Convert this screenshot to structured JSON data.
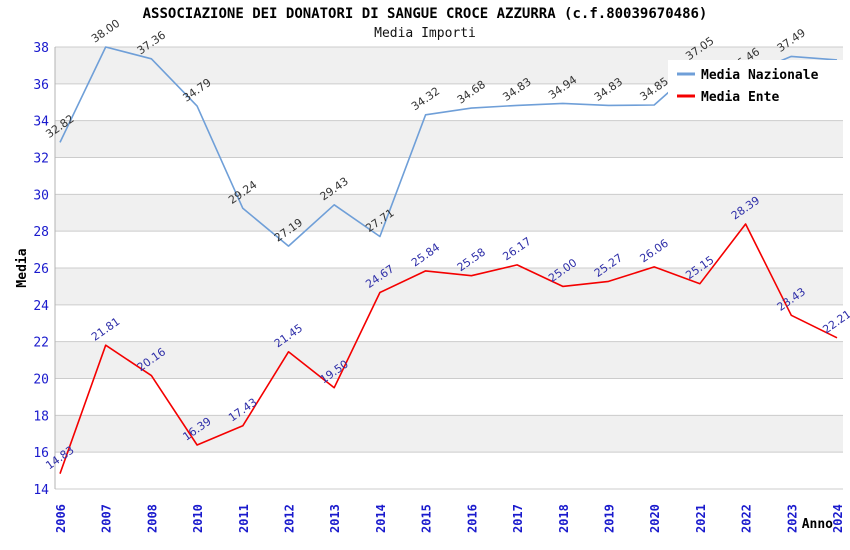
{
  "title": "ASSOCIAZIONE DEI DONATORI DI SANGUE CROCE AZZURRA (c.f.80039670486)",
  "subtitle": "Media Importi",
  "chart_data": {
    "type": "line",
    "categories": [
      "2006",
      "2007",
      "2008",
      "2010",
      "2011",
      "2012",
      "2013",
      "2014",
      "2015",
      "2016",
      "2017",
      "2018",
      "2019",
      "2020",
      "2021",
      "2022",
      "2023",
      "2024"
    ],
    "series": [
      {
        "name": "Media Nazionale",
        "color": "#6f9fd8",
        "label_color": "#333333",
        "values": [
          32.82,
          38.0,
          37.36,
          34.79,
          29.24,
          27.19,
          29.43,
          27.71,
          34.32,
          34.68,
          34.83,
          34.94,
          34.83,
          34.85,
          37.05,
          36.46,
          37.49,
          37.3
        ],
        "labels": [
          "32.82",
          "38.00",
          "37.36",
          "34.79",
          "29.24",
          "27.19",
          "29.43",
          "27.71",
          "34.32",
          "34.68",
          "34.83",
          "34.94",
          "34.83",
          "34.85",
          "37.05",
          "36.46",
          "37.49",
          ""
        ]
      },
      {
        "name": "Media Ente",
        "color": "#f40000",
        "label_color": "#2e2ea8",
        "values": [
          14.83,
          21.81,
          20.16,
          16.39,
          17.43,
          21.45,
          19.5,
          24.67,
          25.84,
          25.58,
          26.17,
          25.0,
          25.27,
          26.06,
          25.15,
          28.39,
          23.43,
          22.21
        ],
        "labels": [
          "14.83",
          "21.81",
          "20.16",
          "16.39",
          "17.43",
          "21.45",
          "19.50",
          "24.67",
          "25.84",
          "25.58",
          "26.17",
          "25.00",
          "25.27",
          "26.06",
          "25.15",
          "28.39",
          "23.43",
          "22.21"
        ]
      }
    ],
    "xlabel": "Anno",
    "ylabel": "Media",
    "ylim": [
      14,
      38
    ],
    "ytick_step": 2,
    "grid": "horizontal",
    "legend_position": "top-right"
  },
  "palette": {
    "background": "#ffffff",
    "band": "#f0f0f0",
    "grid": "#cccccc",
    "axis_edge": "#b3b3b3",
    "tick_label": "#1a1acd",
    "axis_title": "#000000"
  }
}
